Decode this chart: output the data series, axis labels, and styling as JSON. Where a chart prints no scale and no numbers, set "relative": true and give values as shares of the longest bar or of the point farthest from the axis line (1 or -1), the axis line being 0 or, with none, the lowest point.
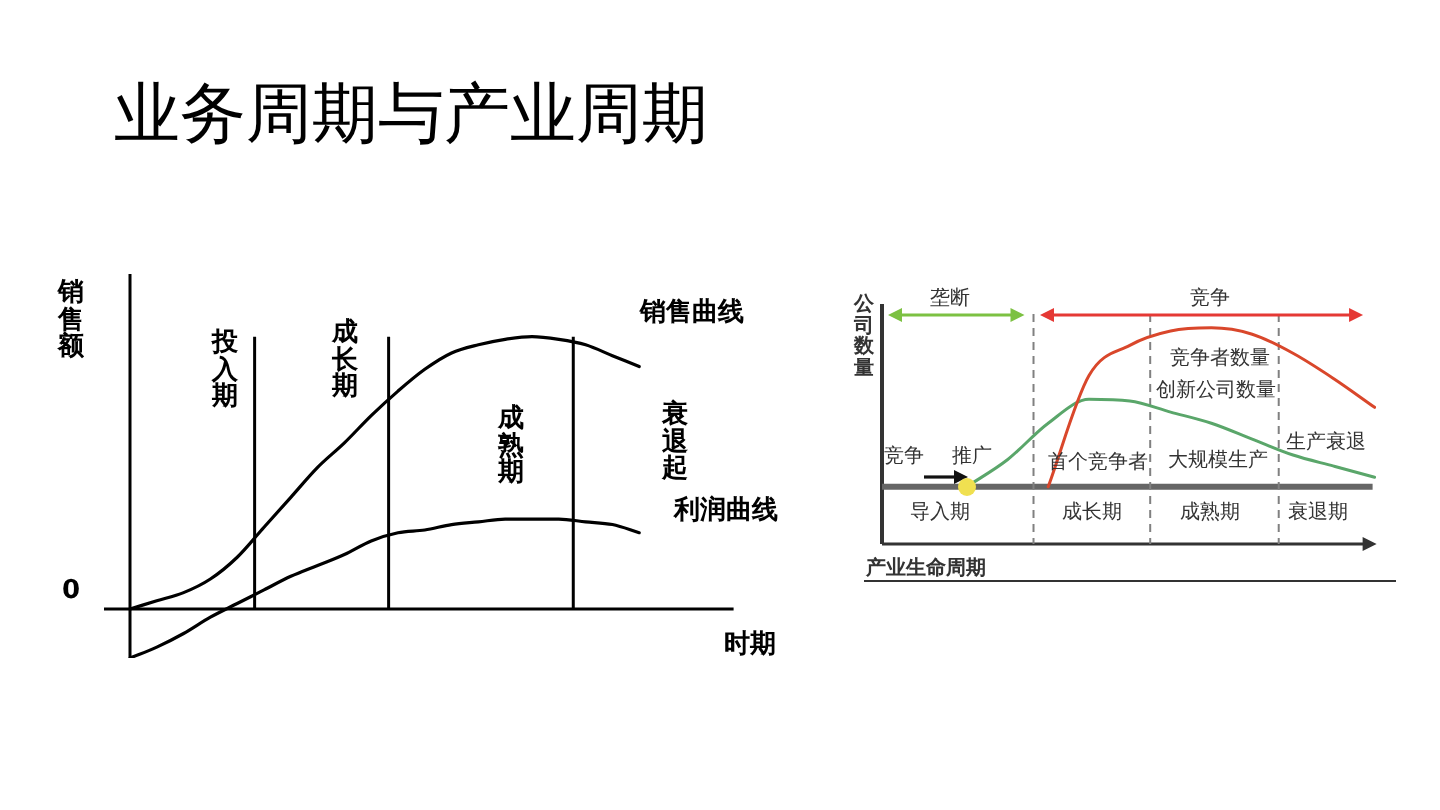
{
  "chart_data": [
    {
      "type": "line",
      "title": "业务周期与产业周期",
      "xlabel": "时期",
      "ylabel": "销售额",
      "relative": true,
      "categories": [
        null,
        null,
        null,
        null,
        null,
        null,
        null,
        null,
        null,
        null,
        null,
        null,
        null,
        null,
        null,
        null,
        null,
        null,
        null,
        null,
        null,
        null,
        null
      ],
      "series": [
        {
          "name": "销售曲线",
          "color": "#000000",
          "values": [
            0,
            0.03,
            0.06,
            0.11,
            0.19,
            0.3,
            0.41,
            0.52,
            0.61,
            0.71,
            0.8,
            0.88,
            0.94,
            0.97,
            0.99,
            1,
            0.99,
            0.97,
            0.93,
            0.89,
            null,
            null,
            null
          ]
        },
        {
          "name": "利润曲线",
          "color": "#000000",
          "values": [
            -0.18,
            -0.14,
            -0.09,
            -0.03,
            0.02,
            0.07,
            0.12,
            0.16,
            0.2,
            0.25,
            0.28,
            0.29,
            0.31,
            0.32,
            0.33,
            0.33,
            0.33,
            0.32,
            0.31,
            0.28,
            null,
            null,
            null
          ]
        }
      ],
      "annotations": [
        "0",
        "投入期",
        "成长期",
        "成熟期",
        "衰退起"
      ],
      "grid": false,
      "legend": false,
      "marker": "none",
      "line_style": "solid"
    },
    {
      "type": "line",
      "xlabel": "产业生命周期",
      "ylabel": "公司数量",
      "relative": true,
      "categories": [
        null,
        null,
        null,
        null,
        null,
        null,
        null,
        null,
        null,
        null,
        null,
        null,
        null
      ],
      "series": [
        {
          "name": "竞争者数量",
          "color": "#d9472b",
          "values": [
            null,
            null,
            null,
            null,
            0,
            0.7,
            0.89,
            0.98,
            1,
            0.96,
            0.84,
            0.68,
            0.5
          ]
        },
        {
          "name": "创新公司数量",
          "color": "#5aa66a",
          "values": [
            null,
            null,
            0,
            0.17,
            0.4,
            0.55,
            0.54,
            0.47,
            0.4,
            0.3,
            0.2,
            0.13,
            0.06
          ]
        }
      ],
      "annotations": [
        "垄断",
        "竞争",
        "竞争",
        "推广",
        "首个竞争者",
        "大规模生产",
        "生产衰退",
        "导入期",
        "成长期",
        "成熟期",
        "衰退期"
      ],
      "grid": false,
      "legend": false,
      "marker": "none",
      "line_style": "solid"
    }
  ]
}
